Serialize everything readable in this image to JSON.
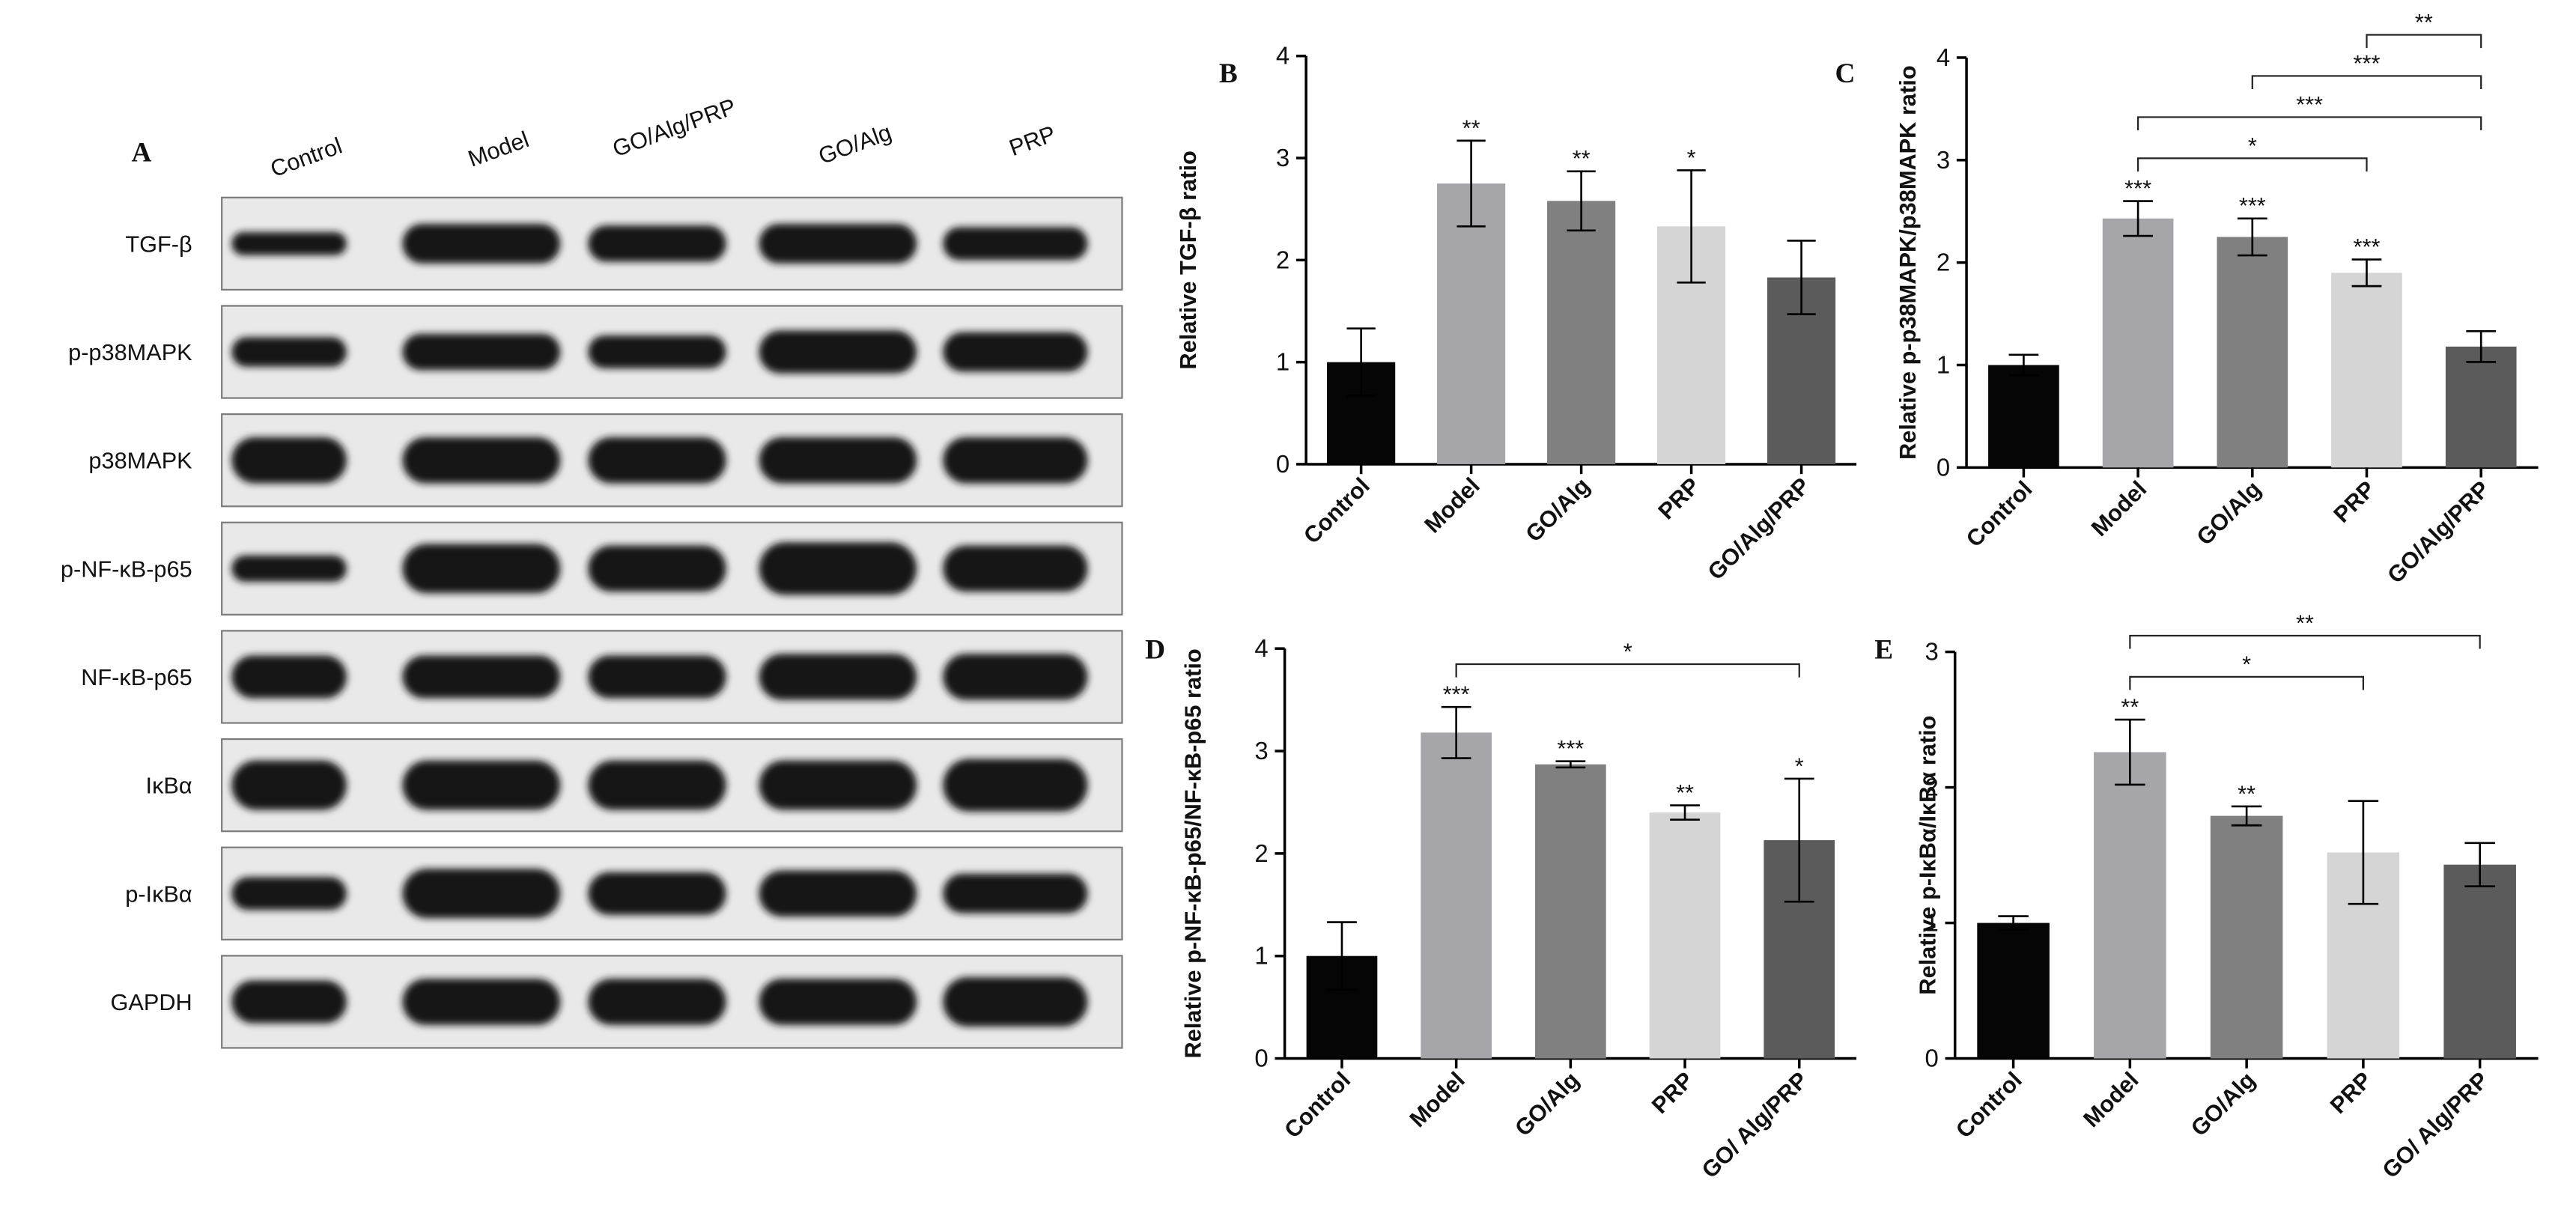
{
  "blot": {
    "panel": "A",
    "lanes": [
      "Control",
      "Model",
      "GO/Alg/PRP",
      "GO/Alg",
      "PRP"
    ],
    "proteins": [
      "TGF-β",
      "p-p38MAPK",
      "p38MAPK",
      "p-NF-κB-p65",
      "NF-κB-p65",
      "IκBα",
      "p-IκBα",
      "GAPDH"
    ]
  },
  "chart_data": [
    {
      "type": "bar",
      "panel": "B",
      "y_label": "Relative TGF-β ratio",
      "categories": [
        "Control",
        "Model",
        "GO/Alg",
        "PRP",
        "GO/Alg/PRP"
      ],
      "values": [
        1.0,
        2.75,
        2.58,
        2.33,
        1.83
      ],
      "errors": [
        0.33,
        0.42,
        0.29,
        0.55,
        0.36
      ],
      "colors": [
        "#050505",
        "#a6a6aa",
        "#808080",
        "#d5d5d5",
        "#5b5b5b"
      ],
      "significance": [
        null,
        "**",
        "**",
        "*",
        null
      ],
      "brackets": [],
      "ylim": [
        0,
        4
      ],
      "yticks": [
        0,
        1,
        2,
        3,
        4
      ]
    },
    {
      "type": "bar",
      "panel": "C",
      "y_label": "Relative p-p38MAPK/p38MAPK ratio",
      "categories": [
        "Control",
        "Model",
        "GO/Alg",
        "PRP",
        "GO/Alg/PRP"
      ],
      "values": [
        1.0,
        2.43,
        2.25,
        1.9,
        1.18
      ],
      "errors": [
        0.1,
        0.17,
        0.18,
        0.13,
        0.15
      ],
      "colors": [
        "#050505",
        "#a6a6aa",
        "#808080",
        "#d5d5d5",
        "#5b5b5b"
      ],
      "significance": [
        null,
        "***",
        "***",
        "***",
        null
      ],
      "brackets": [
        {
          "from": "Model",
          "to": "PRP",
          "label": "*"
        },
        {
          "from": "Model",
          "to": "GO/Alg/PRP",
          "label": "***"
        },
        {
          "from": "GO/Alg",
          "to": "GO/Alg/PRP",
          "label": "***"
        },
        {
          "from": "PRP",
          "to": "GO/Alg/PRP",
          "label": "**"
        }
      ],
      "ylim": [
        0,
        4
      ],
      "yticks": [
        0,
        1,
        2,
        3,
        4
      ]
    },
    {
      "type": "bar",
      "panel": "D",
      "y_label": "Relative p-NF-κB-p65/NF-κB-p65 ratio",
      "categories": [
        "Control",
        "Model",
        "GO/Alg",
        "PRP",
        "GO/ Alg/PRP"
      ],
      "values": [
        1.0,
        3.18,
        2.87,
        2.4,
        2.13
      ],
      "errors": [
        0.33,
        0.25,
        0.03,
        0.07,
        0.6
      ],
      "colors": [
        "#050505",
        "#a6a6aa",
        "#808080",
        "#d5d5d5",
        "#5b5b5b"
      ],
      "significance": [
        null,
        "***",
        "***",
        "**",
        "*"
      ],
      "brackets": [
        {
          "from": "Model",
          "to": "GO/ Alg/PRP",
          "label": "*"
        }
      ],
      "ylim": [
        0,
        4
      ],
      "yticks": [
        0,
        1,
        2,
        3,
        4
      ]
    },
    {
      "type": "bar",
      "panel": "E",
      "y_label": "Relative p-IκBα/IκBα ratio",
      "categories": [
        "Control",
        "Model",
        "GO/Alg",
        "PRP",
        "GO/ Alg/PRP"
      ],
      "values": [
        1.0,
        2.26,
        1.79,
        1.52,
        1.43
      ],
      "errors": [
        0.05,
        0.24,
        0.07,
        0.38,
        0.16
      ],
      "colors": [
        "#050505",
        "#a6a6aa",
        "#808080",
        "#d5d5d5",
        "#5b5b5b"
      ],
      "significance": [
        null,
        "**",
        "**",
        null,
        null
      ],
      "brackets": [
        {
          "from": "Model",
          "to": "PRP",
          "label": "*"
        },
        {
          "from": "Model",
          "to": "GO/ Alg/PRP",
          "label": "**"
        }
      ],
      "ylim": [
        0,
        3
      ],
      "yticks": [
        0,
        1,
        2,
        3
      ]
    }
  ]
}
